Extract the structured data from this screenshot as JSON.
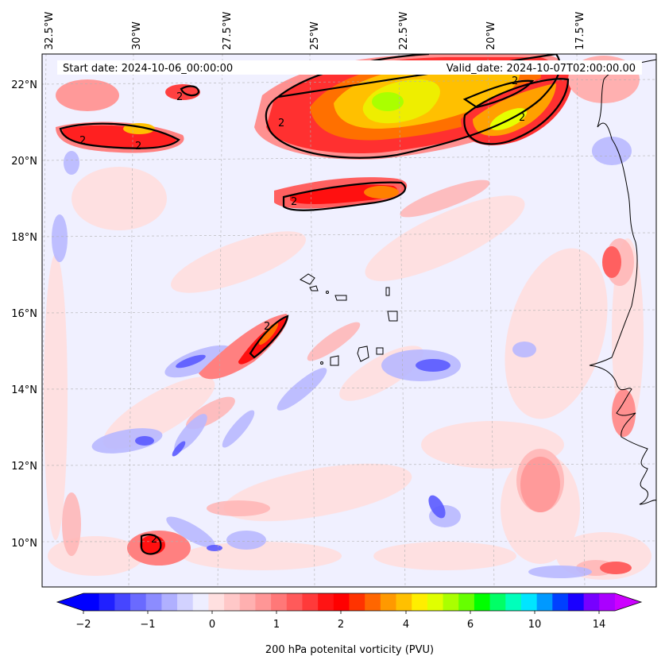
{
  "header": {
    "start_date": "Start date: 2024-10-06_00:00:00",
    "valid_date": "Valid_date: 2024-10-07T02:00:00.00"
  },
  "axes": {
    "lon_labels": [
      "32.5°W",
      "30°W",
      "27.5°W",
      "25°W",
      "22.5°W",
      "20°W",
      "17.5°W"
    ],
    "lat_labels": [
      "22°N",
      "20°N",
      "18°N",
      "16°N",
      "14°N",
      "12°N",
      "10°N"
    ]
  },
  "contour_label": "2",
  "colorbar": {
    "tick_labels": [
      "−2",
      "−1",
      "0",
      "1",
      "2",
      "4",
      "6",
      "10",
      "14"
    ],
    "label": "200 hPa potenital vorticity (PVU)",
    "colors": [
      "#0000ff",
      "#2020ff",
      "#4646ff",
      "#6a6aff",
      "#8c8cff",
      "#b0b0ff",
      "#d2d2ff",
      "#eeeeff",
      "#ffe0e0",
      "#ffc8c8",
      "#ffb0b0",
      "#ff9696",
      "#ff7878",
      "#ff5a5a",
      "#ff3a3a",
      "#ff1414",
      "#ff0000",
      "#ff3300",
      "#ff6600",
      "#ff9900",
      "#ffc000",
      "#ffee00",
      "#e0ff00",
      "#aaff00",
      "#66ff00",
      "#00ff00",
      "#00ff66",
      "#00ffbb",
      "#00e5ff",
      "#0099ff",
      "#0040ff",
      "#1a00ff",
      "#7700ff",
      "#aa00ff"
    ],
    "under_color": "#0000ff",
    "over_color": "#cc00ff"
  },
  "colors": {
    "background_field": "#eeeeff",
    "contour": "#000000",
    "coastline": "#000000",
    "gridline": "#b0b0b0"
  }
}
